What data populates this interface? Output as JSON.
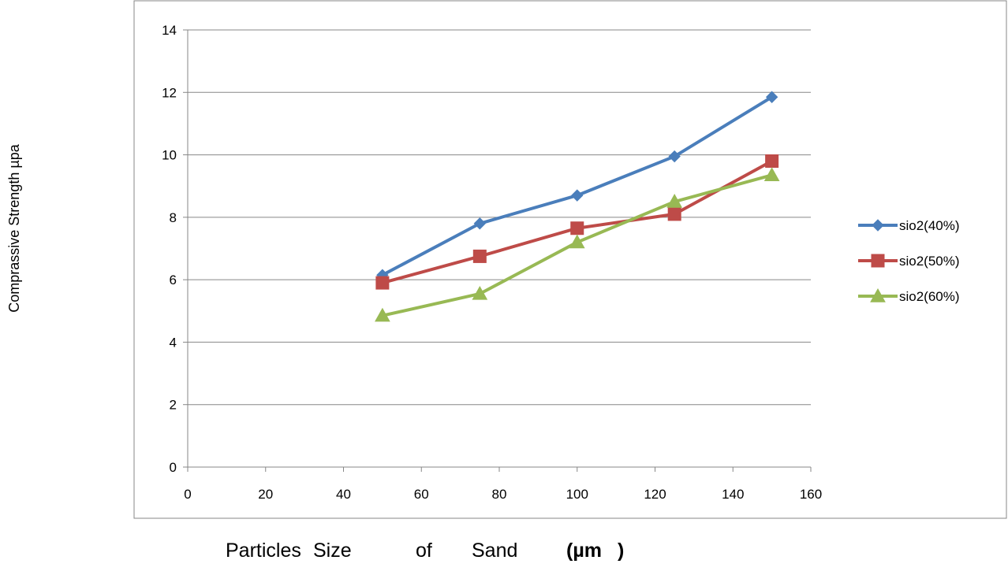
{
  "chart_data": {
    "type": "line",
    "title": "",
    "ylabel": "Comprassive Strength µpa",
    "xlabel_parts": [
      "Particles",
      "Size",
      "of",
      "Sand",
      "(µm",
      ")"
    ],
    "xlim": [
      0,
      160
    ],
    "ylim": [
      0,
      14
    ],
    "x_ticks": [
      0,
      20,
      40,
      60,
      80,
      100,
      120,
      140,
      160
    ],
    "y_ticks": [
      0,
      2,
      4,
      6,
      8,
      10,
      12,
      14
    ],
    "grid": "horizontal",
    "legend_position": "right",
    "x": [
      50,
      75,
      100,
      125,
      150
    ],
    "series": [
      {
        "name": "sio2(40%)",
        "color": "#4a7ebb",
        "marker": "diamond",
        "values": [
          6.15,
          7.8,
          8.7,
          9.95,
          11.85
        ]
      },
      {
        "name": "sio2(50%)",
        "color": "#be4b48",
        "marker": "square",
        "values": [
          5.9,
          6.75,
          7.65,
          8.1,
          9.8
        ]
      },
      {
        "name": "sio2(60%)",
        "color": "#98b954",
        "marker": "triangle",
        "values": [
          4.85,
          5.55,
          7.2,
          8.5,
          9.35
        ]
      }
    ]
  }
}
